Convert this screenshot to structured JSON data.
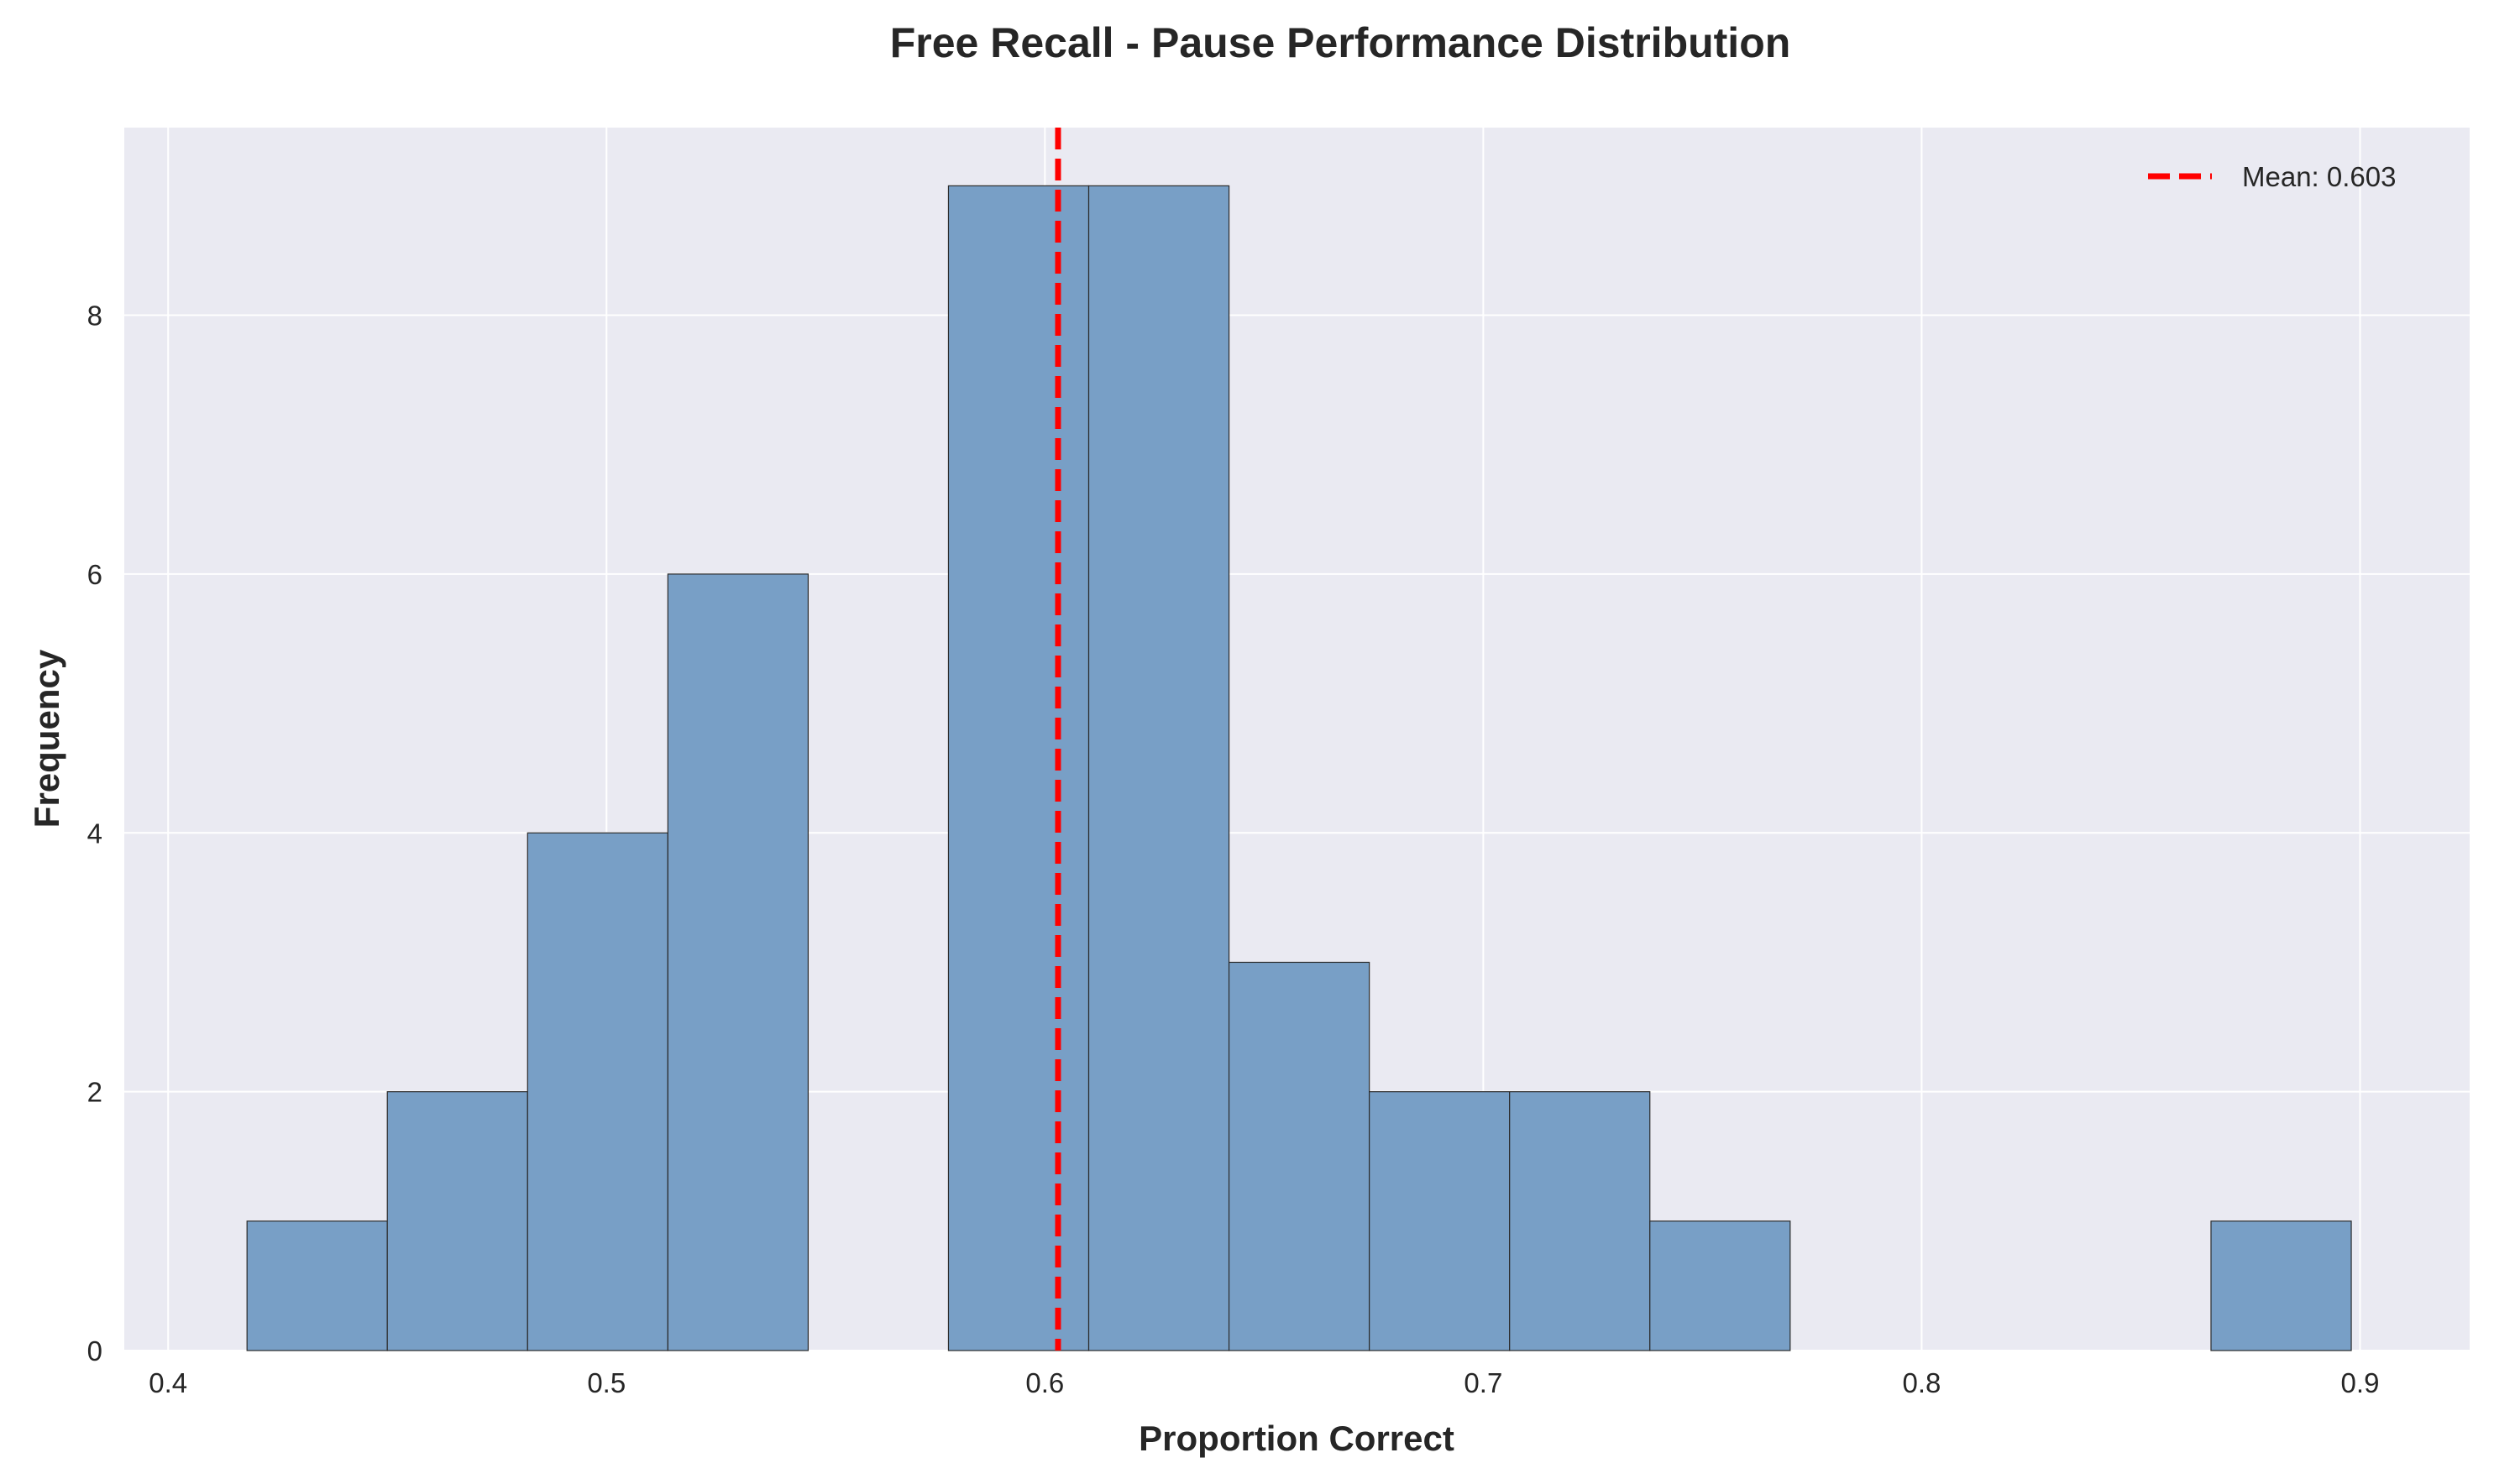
{
  "chart_data": {
    "type": "bar",
    "subtype": "histogram",
    "title": "Free Recall - Pause Performance Distribution",
    "xlabel": "Proportion Correct",
    "ylabel": "Frequency",
    "xlim": [
      0.39,
      0.925
    ],
    "ylim": [
      0,
      9.45
    ],
    "xticks": [
      0.4,
      0.5,
      0.6,
      0.7,
      0.8,
      0.9
    ],
    "xtick_labels": [
      "0.4",
      "0.5",
      "0.6",
      "0.7",
      "0.8",
      "0.9"
    ],
    "yticks": [
      0,
      2,
      4,
      6,
      8
    ],
    "ytick_labels": [
      "0",
      "2",
      "4",
      "6",
      "8"
    ],
    "grid": true,
    "bins": [
      {
        "x0": 0.418,
        "x1": 0.45,
        "count": 1
      },
      {
        "x0": 0.45,
        "x1": 0.482,
        "count": 2
      },
      {
        "x0": 0.482,
        "x1": 0.514,
        "count": 4
      },
      {
        "x0": 0.514,
        "x1": 0.546,
        "count": 6
      },
      {
        "x0": 0.546,
        "x1": 0.578,
        "count": 0
      },
      {
        "x0": 0.578,
        "x1": 0.61,
        "count": 9
      },
      {
        "x0": 0.61,
        "x1": 0.642,
        "count": 9
      },
      {
        "x0": 0.642,
        "x1": 0.674,
        "count": 3
      },
      {
        "x0": 0.674,
        "x1": 0.706,
        "count": 2
      },
      {
        "x0": 0.706,
        "x1": 0.738,
        "count": 2
      },
      {
        "x0": 0.738,
        "x1": 0.77,
        "count": 1
      },
      {
        "x0": 0.77,
        "x1": 0.802,
        "count": 0
      },
      {
        "x0": 0.802,
        "x1": 0.834,
        "count": 0
      },
      {
        "x0": 0.834,
        "x1": 0.866,
        "count": 0
      },
      {
        "x0": 0.866,
        "x1": 0.898,
        "count": 1
      }
    ],
    "mean": 0.603,
    "legend": {
      "label": "Mean: 0.603",
      "position": "top-right"
    },
    "colors": {
      "bar": "#789fc6",
      "bar_edge": "#2b2b2b",
      "mean_line": "#ff0000",
      "background": "#eaeaf2",
      "grid": "#ffffff"
    }
  }
}
